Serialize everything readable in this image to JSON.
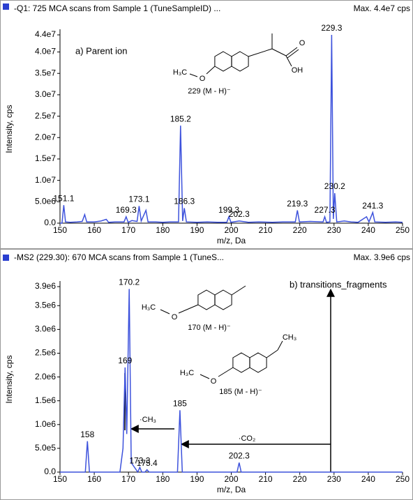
{
  "chart_data": [
    {
      "type": "line",
      "title": "-Q1: 725 MCA scans from Sample 1 (TuneSampleID) ...",
      "max_label": "Max. 4.4e7 cps",
      "x_label": "m/z, Da",
      "y_label": "Intensity, cps",
      "xlim": [
        150,
        250
      ],
      "xticks": [
        150,
        160,
        170,
        180,
        190,
        200,
        210,
        220,
        230,
        240,
        250
      ],
      "ylim": [
        0,
        44000000
      ],
      "yticks": [
        {
          "value": 0,
          "label": "0.0"
        },
        {
          "value": 5000000,
          "label": "5.0e6"
        },
        {
          "value": 10000000,
          "label": "1.0e7"
        },
        {
          "value": 15000000,
          "label": "1.5e7"
        },
        {
          "value": 20000000,
          "label": "2.0e7"
        },
        {
          "value": 25000000,
          "label": "2.5e7"
        },
        {
          "value": 30000000,
          "label": "3.0e7"
        },
        {
          "value": 35000000,
          "label": "3.5e7"
        },
        {
          "value": 40000000,
          "label": "4.0e7"
        },
        {
          "value": 44000000,
          "label": "4.4e7"
        }
      ],
      "series": [
        {
          "color": "#3d52dc",
          "x": [
            150,
            150.6,
            151.1,
            151.6,
            153,
            155,
            156.5,
            157.2,
            157.8,
            160,
            162,
            163.5,
            164.2,
            166,
            168.7,
            169.3,
            169.9,
            171,
            172.5,
            173.1,
            173.7,
            175.1,
            175.7,
            178,
            180,
            182,
            184.6,
            185.2,
            185.8,
            186.3,
            186.9,
            190,
            193,
            196,
            198.7,
            199.3,
            199.9,
            202.3,
            205,
            208,
            212,
            215,
            218.7,
            219.3,
            219.9,
            223,
            226.8,
            227.3,
            227.8,
            228.8,
            229.3,
            229.8,
            230.2,
            230.8,
            233,
            235,
            237,
            239.5,
            240.2,
            241.3,
            241.9,
            245,
            248,
            250
          ],
          "values": [
            0,
            0,
            4200000,
            300000,
            200000,
            300000,
            400000,
            2000000,
            300000,
            300000,
            500000,
            900000,
            200000,
            300000,
            300000,
            1500000,
            200000,
            600000,
            400000,
            4000000,
            500000,
            3000000,
            300000,
            300000,
            200000,
            300000,
            300000,
            22800000,
            500000,
            3500000,
            300000,
            200000,
            300000,
            200000,
            200000,
            1500000,
            200000,
            500000,
            200000,
            300000,
            200000,
            300000,
            300000,
            3000000,
            300000,
            400000,
            300000,
            1500000,
            200000,
            300000,
            44000000,
            1000000,
            7000000,
            300000,
            500000,
            300000,
            200000,
            1500000,
            300000,
            2500000,
            300000,
            200000,
            300000,
            200000
          ]
        }
      ],
      "peak_labels": [
        151.1,
        169.3,
        173.1,
        185.2,
        186.3,
        199.3,
        202.3,
        219.3,
        227.3,
        229.3,
        230.2,
        241.3
      ],
      "annotation": "a) Parent ion",
      "structure_labels": [
        "H₃C",
        "O",
        "OH",
        "O",
        "229 (M - H)⁻"
      ]
    },
    {
      "type": "line",
      "title": "-MS2 (229.30): 670 MCA scans from Sample 1 (TuneS...",
      "max_label": "Max. 3.9e6 cps",
      "x_label": "m/z, Da",
      "y_label": "Intensity, cps",
      "xlim": [
        150,
        250
      ],
      "xticks": [
        150,
        160,
        170,
        180,
        190,
        200,
        210,
        220,
        230,
        240,
        250
      ],
      "ylim": [
        0,
        3900000
      ],
      "yticks": [
        {
          "value": 0,
          "label": "0.0"
        },
        {
          "value": 500000,
          "label": "5.0e5"
        },
        {
          "value": 1000000,
          "label": "1.0e6"
        },
        {
          "value": 1500000,
          "label": "1.5e6"
        },
        {
          "value": 2000000,
          "label": "2.0e6"
        },
        {
          "value": 2500000,
          "label": "2.5e6"
        },
        {
          "value": 3000000,
          "label": "3.0e6"
        },
        {
          "value": 3500000,
          "label": "3.5e6"
        },
        {
          "value": 3900000,
          "label": "3.9e6"
        }
      ],
      "series": [
        {
          "color": "#3d52dc",
          "x": [
            150,
            157.4,
            158.0,
            158.6,
            167.5,
            168.4,
            169.0,
            169.5,
            170.2,
            170.8,
            172.7,
            173.3,
            173.9,
            174.8,
            175.4,
            176,
            184.3,
            185.0,
            185.7,
            201.7,
            202.3,
            202.9,
            250
          ],
          "values": [
            0,
            0,
            650000,
            0,
            0,
            500000,
            2200000,
            800000,
            3850000,
            200000,
            0,
            100000,
            0,
            0,
            50000,
            0,
            0,
            1300000,
            0,
            0,
            200000,
            0,
            0
          ]
        }
      ],
      "peak_labels": [
        158.0,
        169.0,
        170.2,
        173.3,
        175.4,
        185.0,
        202.3
      ],
      "annotation": "b) transitions_fragments",
      "structure_labels": [
        "H₃C",
        "O",
        "170 (M - H)⁻",
        "CH₃",
        "H₃C",
        "O",
        "185 (M - H)⁻"
      ],
      "loss_labels": [
        "·CH₃",
        "·CO₂"
      ]
    }
  ]
}
